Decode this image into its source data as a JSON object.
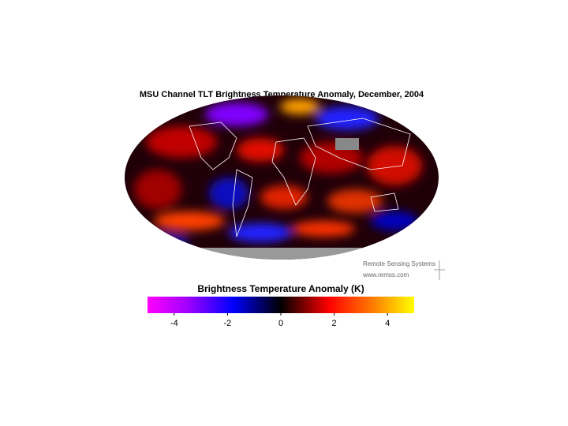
{
  "title": "MSU Channel TLT Brightness Temperature Anomaly, December, 2004",
  "colorbar": {
    "label": "Brightness Temperature Anomaly (K)",
    "lim": [
      -5,
      5
    ],
    "ticks": [
      -4,
      -2,
      0,
      2,
      4
    ]
  },
  "logo": {
    "name": "Remote Sensing Systems",
    "url": "www.remss.com"
  }
}
